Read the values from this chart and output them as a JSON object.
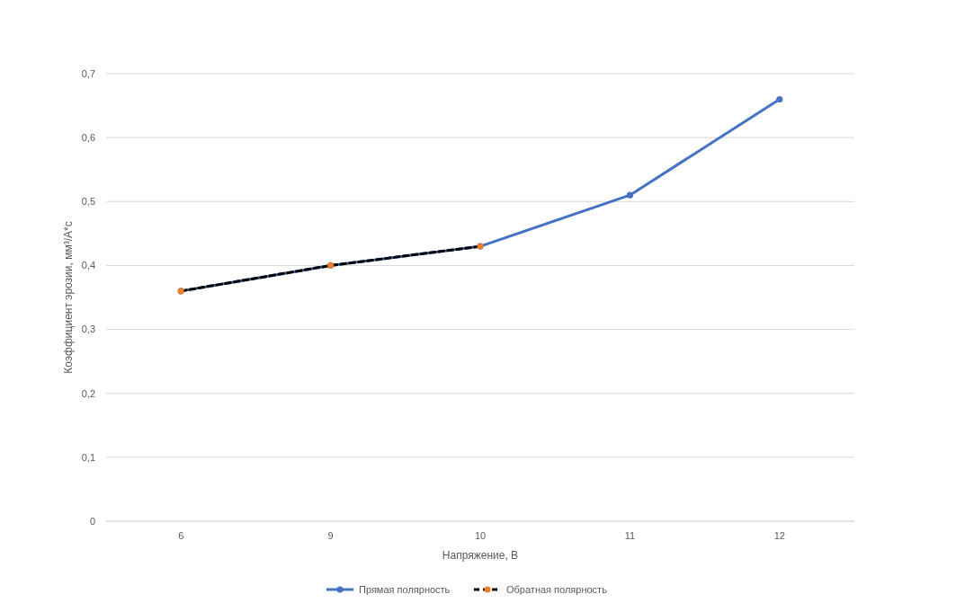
{
  "chart_data": {
    "type": "line",
    "xlabel": "Напряжение, В",
    "ylabel": "Коэффициент эрозии, мм³/А*с",
    "categories": [
      "6",
      "9",
      "10",
      "11",
      "12"
    ],
    "series": [
      {
        "name": "Прямая полярность",
        "color": "#4472c4",
        "values": [
          0.36,
          0.4,
          0.43,
          0.51,
          0.66
        ],
        "line_style": "solid"
      },
      {
        "name": "Обратная полярность",
        "color": "#000000",
        "colors": [
          "#ed7d31",
          "#ed7d31",
          "#ed7d31",
          null,
          null
        ],
        "values": [
          0.36,
          0.4,
          0.43,
          null,
          null
        ],
        "line_style": "dashed"
      }
    ],
    "ylim": [
      0,
      0.7
    ],
    "yticks": [
      0,
      {
        "value": 0.1,
        "label": "0,1"
      },
      {
        "value": 0.2,
        "label": "0,2"
      },
      {
        "value": 0.3,
        "label": "0,3"
      },
      {
        "value": 0.4,
        "label": "0,4"
      },
      {
        "value": 0.5,
        "label": "0,5"
      },
      {
        "value": 0.6,
        "label": "0,6"
      },
      {
        "value": 0.7,
        "label": "0,7"
      }
    ],
    "grid": "y",
    "legend": "bottom",
    "marker": "circle"
  }
}
